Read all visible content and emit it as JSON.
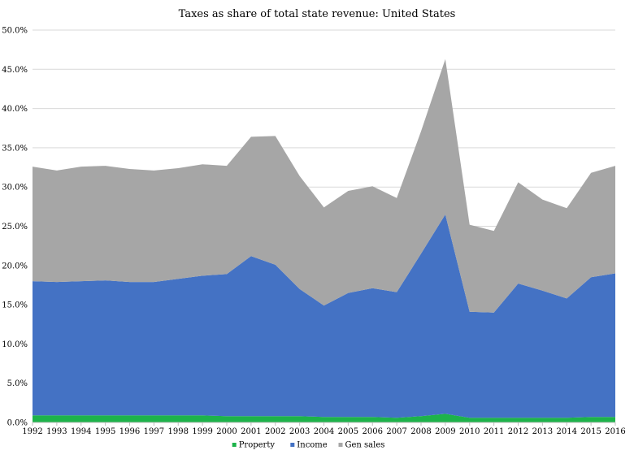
{
  "chart_data": {
    "type": "area",
    "stacked": true,
    "title": "Taxes as share of total state revenue: United States",
    "xlabel": "",
    "ylabel": "",
    "x": [
      "1992",
      "1993",
      "1994",
      "1995",
      "1996",
      "1997",
      "1998",
      "1999",
      "2000",
      "2001",
      "2002",
      "2003",
      "2004",
      "2005",
      "2006",
      "2007",
      "2008",
      "2009",
      "2010",
      "2011",
      "2012",
      "2013",
      "2014",
      "2015",
      "2016"
    ],
    "yticks": [
      "0.0%",
      "5.0%",
      "10.0%",
      "15.0%",
      "20.0%",
      "25.0%",
      "30.0%",
      "35.0%",
      "40.0%",
      "45.0%",
      "50.0%"
    ],
    "ylim": [
      0,
      50
    ],
    "grid": true,
    "legend_position": "bottom",
    "series": [
      {
        "name": "Property",
        "color": "#1db34a",
        "values": [
          0.9,
          0.9,
          0.9,
          0.9,
          0.9,
          0.9,
          0.9,
          0.9,
          0.8,
          0.8,
          0.8,
          0.8,
          0.7,
          0.7,
          0.7,
          0.6,
          0.8,
          1.1,
          0.6,
          0.6,
          0.6,
          0.6,
          0.6,
          0.7,
          0.7
        ]
      },
      {
        "name": "Income",
        "color": "#4472c4",
        "values": [
          17.1,
          17.0,
          17.1,
          17.2,
          17.0,
          17.0,
          17.4,
          17.8,
          18.1,
          20.4,
          19.3,
          16.2,
          14.2,
          15.8,
          16.4,
          16.0,
          20.7,
          25.4,
          13.5,
          13.4,
          17.1,
          16.2,
          15.2,
          17.8,
          18.3
        ]
      },
      {
        "name": "Gen sales",
        "color": "#a6a6a6",
        "values": [
          14.6,
          14.2,
          14.6,
          14.6,
          14.4,
          14.2,
          14.1,
          14.2,
          13.8,
          15.2,
          16.4,
          14.4,
          12.5,
          13.0,
          13.0,
          12.0,
          15.6,
          19.8,
          11.1,
          10.4,
          12.9,
          11.6,
          11.5,
          13.3,
          13.7
        ]
      }
    ]
  }
}
